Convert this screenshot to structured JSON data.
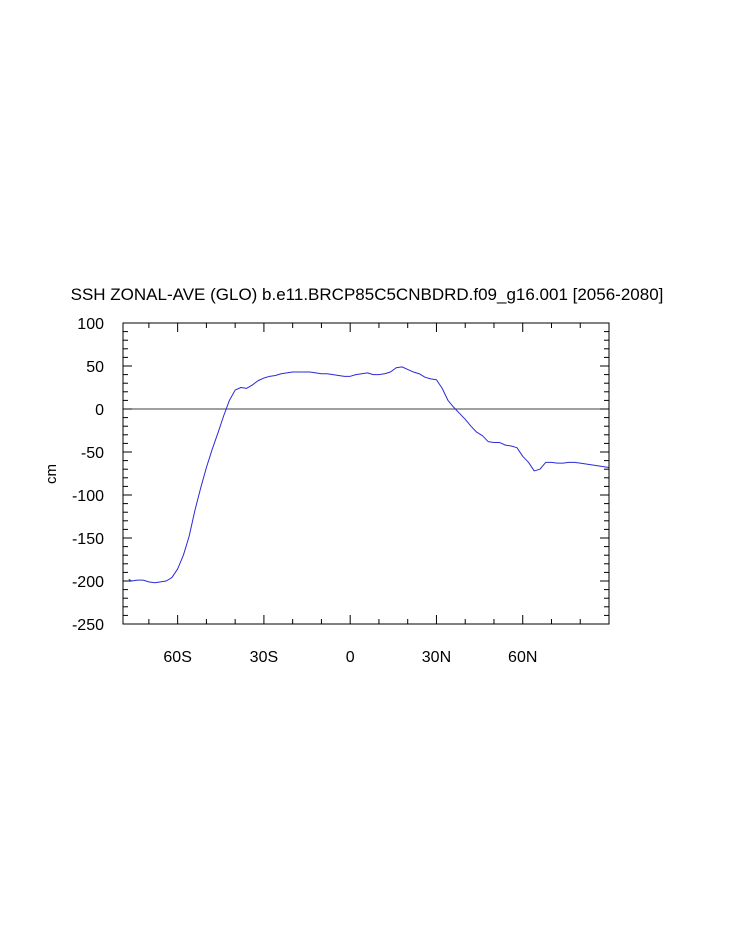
{
  "chart_data": {
    "type": "line",
    "title": "SSH ZONAL-AVE (GLO) b.e11.BRCP85C5CNBDRD.f09_g16.001 [2056-2080]",
    "xlabel": "",
    "ylabel": "cm",
    "xlim": [
      -79,
      90
    ],
    "ylim": [
      -250,
      100
    ],
    "x_ticks": [
      {
        "value": -60,
        "label": "60S"
      },
      {
        "value": -30,
        "label": "30S"
      },
      {
        "value": 0,
        "label": "0"
      },
      {
        "value": 30,
        "label": "30N"
      },
      {
        "value": 60,
        "label": "60N"
      }
    ],
    "y_ticks": [
      {
        "value": 100,
        "label": "100"
      },
      {
        "value": 50,
        "label": "50"
      },
      {
        "value": 0,
        "label": "0"
      },
      {
        "value": -50,
        "label": "-50"
      },
      {
        "value": -100,
        "label": "-100"
      },
      {
        "value": -150,
        "label": "-150"
      },
      {
        "value": -200,
        "label": "-200"
      },
      {
        "value": -250,
        "label": "-250"
      }
    ],
    "reference_line": 0,
    "grid": false,
    "line_color": "#2b2bd6",
    "series": [
      {
        "x": [
          -77,
          -76,
          -74,
          -72,
          -70,
          -68,
          -66,
          -64,
          -62,
          -60,
          -58,
          -56,
          -54,
          -52,
          -50,
          -48,
          -46,
          -44,
          -42,
          -40,
          -38,
          -36,
          -34,
          -32,
          -30,
          -28,
          -26,
          -24,
          -22,
          -20,
          -18,
          -16,
          -14,
          -12,
          -10,
          -8,
          -6,
          -4,
          -2,
          0,
          2,
          4,
          6,
          8,
          10,
          12,
          14,
          16,
          18,
          20,
          22,
          24,
          26,
          28,
          30,
          32,
          34,
          36,
          38,
          40,
          42,
          44,
          46,
          48,
          50,
          52,
          54,
          56,
          58,
          60,
          62,
          64,
          66,
          68,
          70,
          72,
          74,
          76,
          78,
          80,
          82,
          84,
          86,
          88,
          90
        ],
        "values": [
          -198,
          -200,
          -199,
          -199,
          -201,
          -202,
          -201,
          -200,
          -196,
          -186,
          -170,
          -148,
          -118,
          -92,
          -68,
          -47,
          -28,
          -8,
          10,
          22,
          25,
          24,
          28,
          33,
          36,
          38,
          39,
          41,
          42,
          43,
          43,
          43,
          43,
          42,
          41,
          41,
          40,
          39,
          38,
          38,
          40,
          41,
          42,
          40,
          40,
          41,
          43,
          48,
          49,
          46,
          43,
          41,
          37,
          35,
          34,
          24,
          10,
          2,
          -5,
          -12,
          -20,
          -27,
          -31,
          -38,
          -39,
          -39,
          -42,
          -43,
          -45,
          -55,
          -62,
          -72,
          -70,
          -62,
          -62,
          -63,
          -63,
          -62,
          -62,
          -63,
          -64,
          -65,
          -66,
          -67,
          -68
        ]
      }
    ]
  }
}
